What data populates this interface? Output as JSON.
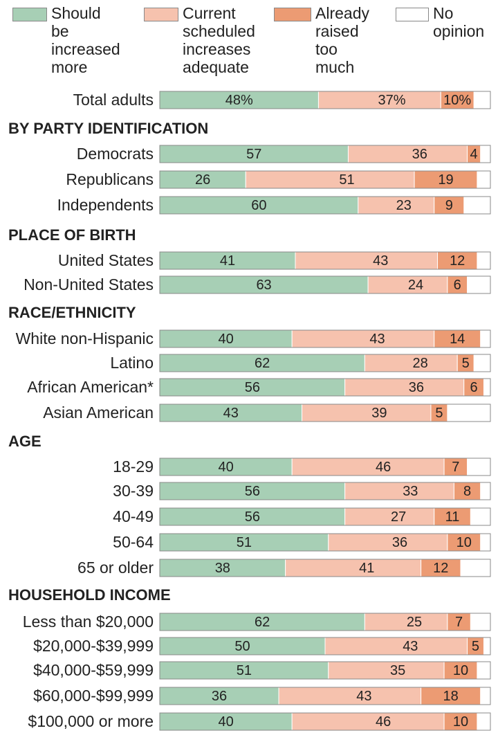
{
  "legend": [
    {
      "label": "Should be\nincreased\nmore",
      "color": "#a7cfb5"
    },
    {
      "label": "Current\nscheduled\nincreases\nadequate",
      "color": "#f6c2ae"
    },
    {
      "label": "Already\nraised\ntoo much",
      "color": "#ec9b73"
    },
    {
      "label": "No\nopinion",
      "color": "#ffffff"
    }
  ],
  "chart_data": {
    "type": "bar",
    "stacked": true,
    "orientation": "horizontal",
    "series": [
      {
        "name": "Should be increased more",
        "color": "#a7cfb5"
      },
      {
        "name": "Current scheduled increases adequate",
        "color": "#f6c2ae"
      },
      {
        "name": "Already raised too much",
        "color": "#ec9b73"
      },
      {
        "name": "No opinion",
        "color": "#ffffff"
      }
    ],
    "rows": [
      {
        "kind": "row",
        "label": "Total adults",
        "values": [
          48,
          37,
          10
        ],
        "labels": [
          "48%",
          "37%",
          "10%"
        ]
      },
      {
        "kind": "section",
        "label": "BY PARTY IDENTIFICATION"
      },
      {
        "kind": "row",
        "label": "Democrats",
        "values": [
          57,
          36,
          4
        ],
        "labels": [
          "57",
          "36",
          "4"
        ]
      },
      {
        "kind": "row",
        "label": "Republicans",
        "values": [
          26,
          51,
          19
        ],
        "labels": [
          "26",
          "51",
          "19"
        ]
      },
      {
        "kind": "row",
        "label": "Independents",
        "values": [
          60,
          23,
          9
        ],
        "labels": [
          "60",
          "23",
          "9"
        ]
      },
      {
        "kind": "section",
        "label": "PLACE OF BIRTH"
      },
      {
        "kind": "row",
        "label": "United States",
        "values": [
          41,
          43,
          12
        ],
        "labels": [
          "41",
          "43",
          "12"
        ]
      },
      {
        "kind": "row",
        "label": "Non-United States",
        "values": [
          63,
          24,
          6
        ],
        "labels": [
          "63",
          "24",
          "6"
        ]
      },
      {
        "kind": "section",
        "label": "RACE/ETHNICITY"
      },
      {
        "kind": "row",
        "label": "White non-Hispanic",
        "values": [
          40,
          43,
          14
        ],
        "labels": [
          "40",
          "43",
          "14"
        ]
      },
      {
        "kind": "row",
        "label": "Latino",
        "values": [
          62,
          28,
          5
        ],
        "labels": [
          "62",
          "28",
          "5"
        ]
      },
      {
        "kind": "row",
        "label": "African American*",
        "values": [
          56,
          36,
          6
        ],
        "labels": [
          "56",
          "36",
          "6"
        ]
      },
      {
        "kind": "row",
        "label": "Asian American",
        "values": [
          43,
          39,
          5
        ],
        "labels": [
          "43",
          "39",
          "5"
        ]
      },
      {
        "kind": "section",
        "label": "AGE"
      },
      {
        "kind": "row",
        "label": "18-29",
        "values": [
          40,
          46,
          7
        ],
        "labels": [
          "40",
          "46",
          "7"
        ]
      },
      {
        "kind": "row",
        "label": "30-39",
        "values": [
          56,
          33,
          8
        ],
        "labels": [
          "56",
          "33",
          "8"
        ]
      },
      {
        "kind": "row",
        "label": "40-49",
        "values": [
          56,
          27,
          11
        ],
        "labels": [
          "56",
          "27",
          "11"
        ]
      },
      {
        "kind": "row",
        "label": "50-64",
        "values": [
          51,
          36,
          10
        ],
        "labels": [
          "51",
          "36",
          "10"
        ]
      },
      {
        "kind": "row",
        "label": "65 or older",
        "values": [
          38,
          41,
          12
        ],
        "labels": [
          "38",
          "41",
          "12"
        ]
      },
      {
        "kind": "section",
        "label": "HOUSEHOLD INCOME"
      },
      {
        "kind": "row",
        "label": "Less than $20,000",
        "values": [
          62,
          25,
          7
        ],
        "labels": [
          "62",
          "25",
          "7"
        ]
      },
      {
        "kind": "row",
        "label": "$20,000-$39,999",
        "values": [
          50,
          43,
          5
        ],
        "labels": [
          "50",
          "43",
          "5"
        ]
      },
      {
        "kind": "row",
        "label": "$40,000-$59,999",
        "values": [
          51,
          35,
          10
        ],
        "labels": [
          "51",
          "35",
          "10"
        ]
      },
      {
        "kind": "row",
        "label": "$60,000-$99,999",
        "values": [
          36,
          43,
          18
        ],
        "labels": [
          "36",
          "43",
          "18"
        ]
      },
      {
        "kind": "row",
        "label": "$100,000 or more",
        "values": [
          40,
          46,
          10
        ],
        "labels": [
          "40",
          "46",
          "10"
        ]
      }
    ],
    "xlim": [
      0,
      100
    ]
  }
}
